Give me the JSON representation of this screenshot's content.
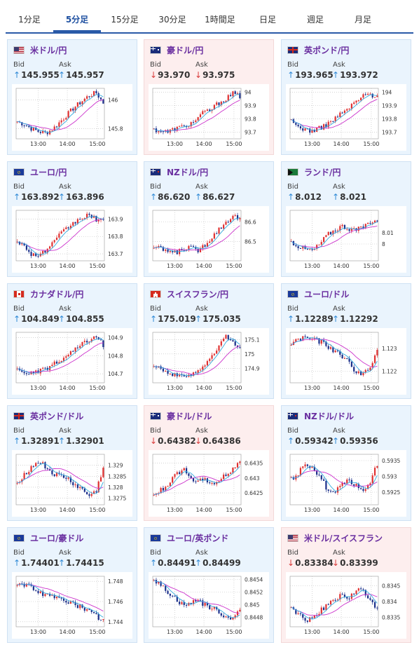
{
  "tabs": [
    {
      "label": "1分足",
      "active": false
    },
    {
      "label": "5分足",
      "active": true
    },
    {
      "label": "15分足",
      "active": false
    },
    {
      "label": "30分足",
      "active": false
    },
    {
      "label": "1時間足",
      "active": false
    },
    {
      "label": "日足",
      "active": false
    },
    {
      "label": "週足",
      "active": false
    },
    {
      "label": "月足",
      "active": false
    }
  ],
  "labels": {
    "bid": "Bid",
    "ask": "Ask"
  },
  "colors": {
    "up_arrow": "#2f89d6",
    "down_arrow": "#d93a3a",
    "pair_text": "#6a2fa0",
    "bull": "#e03030",
    "bear": "#1a2e8a",
    "ma": "#cc33cc",
    "ma2": "#33aadd"
  },
  "cards": [
    {
      "pair": "米ドル/円",
      "flag": "us-jp-flag",
      "dir": "up",
      "bid": "145.955",
      "ask": "145.957",
      "bid_arrow": "↑",
      "ask_arrow": "↑",
      "chart_data": {
        "type": "candlestick",
        "x": [
          "13:00",
          "14:00",
          "15:00"
        ],
        "ylim": [
          145.73,
          146.08
        ],
        "yticks": [
          "146",
          "145.8"
        ],
        "ytickvals": [
          146.0,
          145.8
        ],
        "trend": [
          145.85,
          145.83,
          145.8,
          145.78,
          145.77,
          145.8,
          145.85,
          145.9,
          145.95,
          145.99,
          146.03,
          146.05,
          145.98
        ]
      }
    },
    {
      "pair": "豪ドル/円",
      "flag": "au-jp-flag",
      "dir": "down",
      "bid": "93.970",
      "ask": "93.975",
      "bid_arrow": "↓",
      "ask_arrow": "↓",
      "chart_data": {
        "type": "candlestick",
        "x": [
          "13:00",
          "14:00",
          "15:00"
        ],
        "ylim": [
          93.65,
          94.03
        ],
        "yticks": [
          "94",
          "93.9",
          "93.8",
          "93.7"
        ],
        "ytickvals": [
          94.0,
          93.9,
          93.8,
          93.7
        ],
        "trend": [
          93.72,
          93.71,
          93.7,
          93.73,
          93.74,
          93.76,
          93.8,
          93.85,
          93.87,
          93.92,
          93.95,
          93.99,
          93.97
        ]
      }
    },
    {
      "pair": "英ポンド/円",
      "flag": "gb-jp-flag",
      "dir": "up",
      "bid": "193.965",
      "ask": "193.972",
      "bid_arrow": "↑",
      "ask_arrow": "↑",
      "chart_data": {
        "type": "candlestick",
        "x": [
          "13:00",
          "14:00",
          "15:00"
        ],
        "ylim": [
          193.65,
          194.03
        ],
        "yticks": [
          "194",
          "193.9",
          "193.8",
          "193.7"
        ],
        "ytickvals": [
          194.0,
          193.9,
          193.8,
          193.7
        ],
        "trend": [
          193.78,
          193.74,
          193.72,
          193.71,
          193.73,
          193.76,
          193.8,
          193.84,
          193.88,
          193.93,
          193.97,
          193.99,
          193.96
        ]
      }
    },
    {
      "pair": "ユーロ/円",
      "flag": "eu-jp-flag",
      "dir": "up",
      "bid": "163.892",
      "ask": "163.896",
      "bid_arrow": "↑",
      "ask_arrow": "↑",
      "chart_data": {
        "type": "candlestick",
        "x": [
          "13:00",
          "14:00",
          "15:00"
        ],
        "ylim": [
          163.66,
          163.95
        ],
        "yticks": [
          "163.9",
          "163.8",
          "163.7"
        ],
        "ytickvals": [
          163.9,
          163.8,
          163.7
        ],
        "trend": [
          163.78,
          163.74,
          163.7,
          163.69,
          163.72,
          163.76,
          163.81,
          163.85,
          163.88,
          163.91,
          163.92,
          163.9,
          163.89
        ]
      }
    },
    {
      "pair": "NZドル/円",
      "flag": "nz-jp-flag",
      "dir": "up",
      "bid": "86.620",
      "ask": "86.627",
      "bid_arrow": "↑",
      "ask_arrow": "↑",
      "chart_data": {
        "type": "candlestick",
        "x": [
          "13:00",
          "14:00",
          "15:00"
        ],
        "ylim": [
          86.4,
          86.66
        ],
        "yticks": [
          "86.6",
          "86.5"
        ],
        "ytickvals": [
          86.6,
          86.5
        ],
        "trend": [
          86.47,
          86.46,
          86.45,
          86.44,
          86.46,
          86.47,
          86.45,
          86.48,
          86.52,
          86.56,
          86.6,
          86.63,
          86.62
        ]
      }
    },
    {
      "pair": "ランド/円",
      "flag": "za-jp-flag",
      "dir": "up",
      "bid": "8.012",
      "ask": "8.021",
      "bid_arrow": "↑",
      "ask_arrow": "↑",
      "chart_data": {
        "type": "candlestick",
        "x": [
          "13:00",
          "14:00",
          "15:00"
        ],
        "ylim": [
          7.985,
          8.03
        ],
        "yticks": [
          "8.01",
          "8"
        ],
        "ytickvals": [
          8.01,
          8.0
        ],
        "trend": [
          8.002,
          7.998,
          7.995,
          7.994,
          8.0,
          8.008,
          8.012,
          8.016,
          8.014,
          8.012,
          8.015,
          8.02,
          8.021
        ]
      }
    },
    {
      "pair": "カナダドル/円",
      "flag": "ca-jp-flag",
      "dir": "up",
      "bid": "104.849",
      "ask": "104.855",
      "bid_arrow": "↑",
      "ask_arrow": "↑",
      "chart_data": {
        "type": "candlestick",
        "x": [
          "13:00",
          "14:00",
          "15:00"
        ],
        "ylim": [
          104.65,
          104.93
        ],
        "yticks": [
          "104.9",
          "104.8",
          "104.7"
        ],
        "ytickvals": [
          104.9,
          104.8,
          104.7
        ],
        "trend": [
          104.72,
          104.71,
          104.7,
          104.71,
          104.73,
          104.75,
          104.77,
          104.8,
          104.83,
          104.86,
          104.89,
          104.9,
          104.86
        ]
      }
    },
    {
      "pair": "スイスフラン/円",
      "flag": "ch-jp-flag",
      "dir": "up",
      "bid": "175.019",
      "ask": "175.035",
      "bid_arrow": "↑",
      "ask_arrow": "↑",
      "chart_data": {
        "type": "candlestick",
        "x": [
          "13:00",
          "14:00",
          "15:00"
        ],
        "ylim": [
          174.8,
          175.15
        ],
        "yticks": [
          "175.1",
          "175",
          "174.9"
        ],
        "ytickvals": [
          175.1,
          175.0,
          174.9
        ],
        "trend": [
          174.93,
          174.9,
          174.87,
          174.85,
          174.84,
          174.86,
          174.88,
          174.92,
          174.97,
          175.05,
          175.12,
          175.1,
          175.03
        ]
      }
    },
    {
      "pair": "ユーロ/ドル",
      "flag": "eu-us-flag",
      "dir": "up",
      "bid": "1.12289",
      "ask": "1.12292",
      "bid_arrow": "↑",
      "ask_arrow": "↑",
      "chart_data": {
        "type": "candlestick",
        "x": [
          "13:00",
          "14:00",
          "15:00"
        ],
        "ylim": [
          1.1215,
          1.1237
        ],
        "yticks": [
          "1.123",
          "1.122"
        ],
        "ytickvals": [
          1.123,
          1.122
        ],
        "trend": [
          1.1232,
          1.1234,
          1.1235,
          1.1234,
          1.1233,
          1.1231,
          1.1229,
          1.1227,
          1.1224,
          1.122,
          1.1219,
          1.1221,
          1.1229
        ]
      }
    },
    {
      "pair": "英ポンド/ドル",
      "flag": "gb-us-flag",
      "dir": "up",
      "bid": "1.32891",
      "ask": "1.32901",
      "bid_arrow": "↑",
      "ask_arrow": "↑",
      "chart_data": {
        "type": "candlestick",
        "x": [
          "13:00",
          "14:00",
          "15:00"
        ],
        "ylim": [
          1.3272,
          1.3295
        ],
        "yticks": [
          "1.329",
          "1.3285",
          "1.328",
          "1.3275"
        ],
        "ytickvals": [
          1.329,
          1.3285,
          1.328,
          1.3275
        ],
        "trend": [
          1.3282,
          1.3286,
          1.3289,
          1.3292,
          1.3289,
          1.3286,
          1.3285,
          1.3284,
          1.3281,
          1.3279,
          1.3276,
          1.3278,
          1.3289
        ]
      }
    },
    {
      "pair": "豪ドル/ドル",
      "flag": "au-us-flag",
      "dir": "down",
      "bid": "0.64382",
      "ask": "0.64386",
      "bid_arrow": "↓",
      "ask_arrow": "↓",
      "chart_data": {
        "type": "candlestick",
        "x": [
          "13:00",
          "14:00",
          "15:00"
        ],
        "ylim": [
          0.6421,
          0.6438
        ],
        "yticks": [
          "0.6435",
          "0.643",
          "0.6425"
        ],
        "ytickvals": [
          0.6435,
          0.643,
          0.6425
        ],
        "trend": [
          0.6424,
          0.6426,
          0.6428,
          0.6431,
          0.6433,
          0.6431,
          0.6428,
          0.643,
          0.6428,
          0.6429,
          0.6431,
          0.6433,
          0.6436
        ]
      }
    },
    {
      "pair": "NZドル/ドル",
      "flag": "nz-us-flag",
      "dir": "up",
      "bid": "0.59342",
      "ask": "0.59356",
      "bid_arrow": "↑",
      "ask_arrow": "↑",
      "chart_data": {
        "type": "candlestick",
        "x": [
          "13:00",
          "14:00",
          "15:00"
        ],
        "ylim": [
          0.5921,
          0.5937
        ],
        "yticks": [
          "0.5935",
          "0.593",
          "0.5925"
        ],
        "ytickvals": [
          0.5935,
          0.593,
          0.5925
        ],
        "trend": [
          0.5929,
          0.5931,
          0.5934,
          0.5933,
          0.593,
          0.5926,
          0.5925,
          0.5928,
          0.5929,
          0.5927,
          0.5926,
          0.5928,
          0.5934
        ]
      }
    },
    {
      "pair": "ユーロ/豪ドル",
      "flag": "eu-au-flag",
      "dir": "up",
      "bid": "1.74401",
      "ask": "1.74415",
      "bid_arrow": "↑",
      "ask_arrow": "↑",
      "chart_data": {
        "type": "candlestick",
        "x": [
          "13:00",
          "14:00",
          "15:00"
        ],
        "ylim": [
          1.7435,
          1.7485
        ],
        "yticks": [
          "1.748",
          "1.746",
          "1.744"
        ],
        "ytickvals": [
          1.748,
          1.746,
          1.744
        ],
        "trend": [
          1.7478,
          1.7476,
          1.7474,
          1.747,
          1.7466,
          1.7464,
          1.7465,
          1.746,
          1.7457,
          1.7454,
          1.745,
          1.7446,
          1.7441
        ]
      }
    },
    {
      "pair": "ユーロ/英ポンド",
      "flag": "eu-gb-flag",
      "dir": "up",
      "bid": "0.84491",
      "ask": "0.84499",
      "bid_arrow": "↑",
      "ask_arrow": "↑",
      "chart_data": {
        "type": "candlestick",
        "x": [
          "13:00",
          "14:00",
          "15:00"
        ],
        "ylim": [
          0.84465,
          0.84545
        ],
        "yticks": [
          "0.8454",
          "0.8452",
          "0.845",
          "0.8448"
        ],
        "ytickvals": [
          0.8454,
          0.8452,
          0.845,
          0.8448
        ],
        "trend": [
          0.8454,
          0.8453,
          0.8452,
          0.8451,
          0.845,
          0.845,
          0.8451,
          0.845,
          0.84495,
          0.8449,
          0.8448,
          0.8448,
          0.84491
        ]
      }
    },
    {
      "pair": "米ドル/スイスフラン",
      "flag": "us-ch-flag",
      "dir": "down",
      "bid": "0.83384",
      "ask": "0.83399",
      "bid_arrow": "↓",
      "ask_arrow": "↓",
      "chart_data": {
        "type": "candlestick",
        "x": [
          "13:00",
          "14:00",
          "15:00"
        ],
        "ylim": [
          0.8332,
          0.8348
        ],
        "yticks": [
          "0.8345",
          "0.834",
          "0.8335"
        ],
        "ytickvals": [
          0.8345,
          0.834,
          0.8335
        ],
        "trend": [
          0.8338,
          0.8336,
          0.8334,
          0.8335,
          0.8337,
          0.8339,
          0.834,
          0.8342,
          0.8341,
          0.8343,
          0.8344,
          0.834,
          0.8338
        ]
      }
    }
  ]
}
